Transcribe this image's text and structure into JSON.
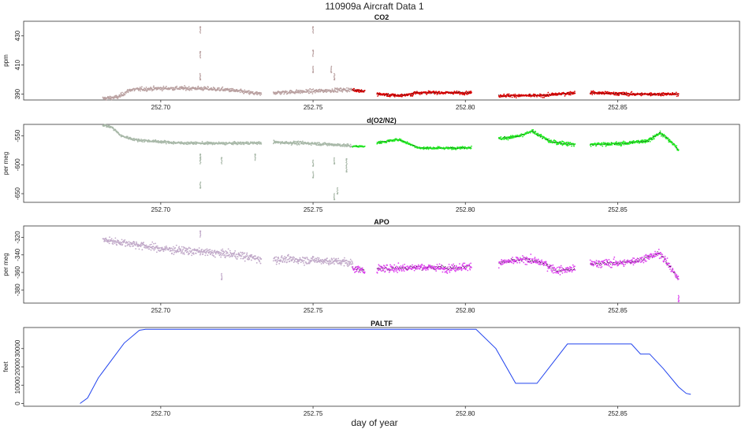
{
  "figure": {
    "title": "110909a   Aircraft Data 1",
    "xlabel": "day of year"
  },
  "chart_data": [
    {
      "type": "scatter",
      "title": "CO2",
      "ylabel": "ppm",
      "xlim": [
        252.655,
        252.89
      ],
      "ylim": [
        386,
        440
      ],
      "x_ticks": [
        252.7,
        252.75,
        252.8,
        252.85
      ],
      "x_tick_labels": [
        "252.70",
        "252.75",
        "252.80",
        "252.85"
      ],
      "y_ticks": [
        390,
        410,
        430
      ],
      "y_tick_labels": [
        "390",
        "410",
        "430"
      ],
      "colors": {
        "early": "#b9a0a0",
        "late": "#dd0000",
        "overlay": "#000000"
      },
      "segments": [
        {
          "color": "early",
          "x_start": 252.681,
          "x_end": 252.733,
          "points": [
            [
              252.681,
              387
            ],
            [
              252.686,
              388
            ],
            [
              252.69,
              393
            ],
            [
              252.7,
              394
            ],
            [
              252.712,
              394
            ],
            [
              252.722,
              393
            ],
            [
              252.733,
              390
            ]
          ],
          "noise": 1.2
        },
        {
          "color": "early",
          "x_start": 252.737,
          "x_end": 252.763,
          "points": [
            [
              252.737,
              391
            ],
            [
              252.75,
              392
            ],
            [
              252.76,
              393
            ],
            [
              252.763,
              393
            ]
          ],
          "noise": 1.2
        },
        {
          "color": "late",
          "x_start": 252.763,
          "x_end": 252.767,
          "points": [
            [
              252.763,
              393
            ],
            [
              252.767,
              392
            ]
          ],
          "noise": 1.0
        },
        {
          "color": "late",
          "x_start": 252.771,
          "x_end": 252.783,
          "points": [
            [
              252.771,
              390
            ],
            [
              252.778,
              389
            ],
            [
              252.783,
              390
            ]
          ],
          "noise": 1.0
        },
        {
          "color": "late",
          "x_start": 252.783,
          "x_end": 252.802,
          "points": [
            [
              252.783,
              391
            ],
            [
              252.795,
              391
            ],
            [
              252.802,
              391
            ]
          ],
          "noise": 1.0
        },
        {
          "color": "late",
          "x_start": 252.811,
          "x_end": 252.836,
          "points": [
            [
              252.811,
              389
            ],
            [
              252.825,
              389
            ],
            [
              252.836,
              391
            ]
          ],
          "noise": 1.0
        },
        {
          "color": "late",
          "x_start": 252.841,
          "x_end": 252.87,
          "points": [
            [
              252.841,
              391
            ],
            [
              252.855,
              390
            ],
            [
              252.87,
              390
            ]
          ],
          "noise": 1.0
        }
      ],
      "spikes": [
        {
          "x": 252.713,
          "y": 436,
          "color": "early"
        },
        {
          "x": 252.713,
          "y": 419,
          "color": "early"
        },
        {
          "x": 252.713,
          "y": 400,
          "color": "early"
        },
        {
          "x": 252.75,
          "y": 436,
          "color": "early"
        },
        {
          "x": 252.75,
          "y": 420,
          "color": "early"
        },
        {
          "x": 252.75,
          "y": 405,
          "color": "early"
        },
        {
          "x": 252.756,
          "y": 405,
          "color": "early"
        },
        {
          "x": 252.757,
          "y": 400,
          "color": "early"
        }
      ]
    },
    {
      "type": "scatter",
      "title": "d(O2/N2)",
      "ylabel": "per meg",
      "xlim": [
        252.655,
        252.89
      ],
      "ylim": [
        -665,
        -530
      ],
      "x_ticks": [
        252.7,
        252.75,
        252.8,
        252.85
      ],
      "x_tick_labels": [
        "252.70",
        "252.75",
        "252.80",
        "252.85"
      ],
      "y_ticks": [
        -650,
        -600,
        -550
      ],
      "y_tick_labels": [
        "-650",
        "-600",
        "-550"
      ],
      "colors": {
        "early": "#a8b8a8",
        "late": "#22ee22",
        "overlay": "#000000"
      },
      "segments": [
        {
          "color": "early",
          "x_start": 252.681,
          "x_end": 252.733,
          "points": [
            [
              252.681,
              -531
            ],
            [
              252.684,
              -535
            ],
            [
              252.687,
              -550
            ],
            [
              252.692,
              -557
            ],
            [
              252.705,
              -562
            ],
            [
              252.72,
              -563
            ],
            [
              252.733,
              -562
            ]
          ],
          "noise": 2.0
        },
        {
          "color": "early",
          "x_start": 252.737,
          "x_end": 252.763,
          "points": [
            [
              252.737,
              -561
            ],
            [
              252.75,
              -563
            ],
            [
              252.76,
              -566
            ],
            [
              252.763,
              -568
            ]
          ],
          "noise": 2.5
        },
        {
          "color": "late",
          "x_start": 252.763,
          "x_end": 252.767,
          "points": [
            [
              252.763,
              -568
            ],
            [
              252.767,
              -568
            ]
          ],
          "noise": 1.5
        },
        {
          "color": "late",
          "x_start": 252.771,
          "x_end": 252.802,
          "points": [
            [
              252.771,
              -562
            ],
            [
              252.778,
              -556
            ],
            [
              252.785,
              -571
            ],
            [
              252.795,
              -571
            ],
            [
              252.802,
              -570
            ]
          ],
          "noise": 2.0
        },
        {
          "color": "late",
          "x_start": 252.811,
          "x_end": 252.836,
          "points": [
            [
              252.811,
              -555
            ],
            [
              252.818,
              -550
            ],
            [
              252.822,
              -542
            ],
            [
              252.828,
              -560
            ],
            [
              252.836,
              -565
            ]
          ],
          "noise": 3.0
        },
        {
          "color": "late",
          "x_start": 252.841,
          "x_end": 252.87,
          "points": [
            [
              252.841,
              -565
            ],
            [
              252.852,
              -563
            ],
            [
              252.86,
              -558
            ],
            [
              252.864,
              -545
            ],
            [
              252.868,
              -562
            ],
            [
              252.87,
              -575
            ]
          ],
          "noise": 3.0
        }
      ],
      "spikes": [
        {
          "x": 252.713,
          "y": -582,
          "color": "early"
        },
        {
          "x": 252.713,
          "y": -640,
          "color": "early"
        },
        {
          "x": 252.713,
          "y": -588,
          "color": "early"
        },
        {
          "x": 252.72,
          "y": -588,
          "color": "early"
        },
        {
          "x": 252.731,
          "y": -582,
          "color": "early"
        },
        {
          "x": 252.75,
          "y": -602,
          "color": "early"
        },
        {
          "x": 252.75,
          "y": -622,
          "color": "early"
        },
        {
          "x": 252.757,
          "y": -598,
          "color": "early"
        },
        {
          "x": 252.757,
          "y": -660,
          "color": "early"
        },
        {
          "x": 252.758,
          "y": -650,
          "color": "early"
        },
        {
          "x": 252.761,
          "y": -590,
          "color": "early"
        },
        {
          "x": 252.761,
          "y": -612,
          "color": "early"
        }
      ]
    },
    {
      "type": "scatter",
      "title": "APO",
      "ylabel": "per meg",
      "xlim": [
        252.655,
        252.89
      ],
      "ylim": [
        -395,
        -307
      ],
      "x_ticks": [
        252.7,
        252.75,
        252.8,
        252.85
      ],
      "x_tick_labels": [
        "252.70",
        "252.75",
        "252.80",
        "252.85"
      ],
      "y_ticks": [
        -380,
        -360,
        -340,
        -320
      ],
      "y_tick_labels": [
        "-380",
        "-360",
        "-340",
        "-320"
      ],
      "colors": {
        "early": "#c0a8c8",
        "late": "#dd44ee",
        "overlay": "#000000"
      },
      "segments": [
        {
          "color": "early",
          "x_start": 252.681,
          "x_end": 252.733,
          "points": [
            [
              252.681,
              -323
            ],
            [
              252.69,
              -327
            ],
            [
              252.7,
              -333
            ],
            [
              252.715,
              -337
            ],
            [
              252.725,
              -340
            ],
            [
              252.733,
              -345
            ]
          ],
          "noise": 4.0
        },
        {
          "color": "early",
          "x_start": 252.737,
          "x_end": 252.763,
          "points": [
            [
              252.737,
              -345
            ],
            [
              252.75,
              -346
            ],
            [
              252.76,
              -348
            ],
            [
              252.763,
              -350
            ]
          ],
          "noise": 4.0
        },
        {
          "color": "late",
          "x_start": 252.763,
          "x_end": 252.767,
          "points": [
            [
              252.763,
              -355
            ],
            [
              252.767,
              -358
            ]
          ],
          "noise": 4.0
        },
        {
          "color": "late",
          "x_start": 252.771,
          "x_end": 252.802,
          "points": [
            [
              252.771,
              -356
            ],
            [
              252.785,
              -354
            ],
            [
              252.795,
              -355
            ],
            [
              252.802,
              -353
            ]
          ],
          "noise": 4.0
        },
        {
          "color": "late",
          "x_start": 252.811,
          "x_end": 252.836,
          "points": [
            [
              252.811,
              -349
            ],
            [
              252.82,
              -345
            ],
            [
              252.826,
              -350
            ],
            [
              252.83,
              -358
            ],
            [
              252.836,
              -356
            ]
          ],
          "noise": 4.0
        },
        {
          "color": "late",
          "x_start": 252.841,
          "x_end": 252.87,
          "points": [
            [
              252.841,
              -350
            ],
            [
              252.852,
              -349
            ],
            [
              252.858,
              -345
            ],
            [
              252.864,
              -338
            ],
            [
              252.868,
              -358
            ],
            [
              252.87,
              -368
            ]
          ],
          "noise": 4.0
        }
      ],
      "spikes": [
        {
          "x": 252.713,
          "y": -313,
          "color": "early"
        },
        {
          "x": 252.72,
          "y": -368,
          "color": "early"
        },
        {
          "x": 252.87,
          "y": -393,
          "color": "late"
        }
      ]
    },
    {
      "type": "line",
      "title": "PALTF",
      "ylabel": "feet",
      "xlim": [
        252.655,
        252.89
      ],
      "ylim": [
        -1500,
        41500
      ],
      "x_ticks": [
        252.7,
        252.75,
        252.8,
        252.85
      ],
      "x_tick_labels": [
        "252.70",
        "252.75",
        "252.80",
        "252.85"
      ],
      "y_ticks": [
        0,
        10000,
        20000,
        30000
      ],
      "y_tick_labels": [
        "0",
        "10000",
        "20000",
        "30000"
      ],
      "color": "#2244ee",
      "x": [
        252.6735,
        252.676,
        252.6795,
        252.688,
        252.693,
        252.695,
        252.8035,
        252.81,
        252.8165,
        252.8235,
        252.8335,
        252.8545,
        252.8575,
        252.8605,
        252.865,
        252.87,
        252.8725,
        252.874
      ],
      "y": [
        0,
        3000,
        14000,
        33000,
        40000,
        40500,
        40500,
        30000,
        11000,
        11000,
        32500,
        32500,
        27000,
        27000,
        19000,
        9000,
        5500,
        5000
      ]
    }
  ]
}
